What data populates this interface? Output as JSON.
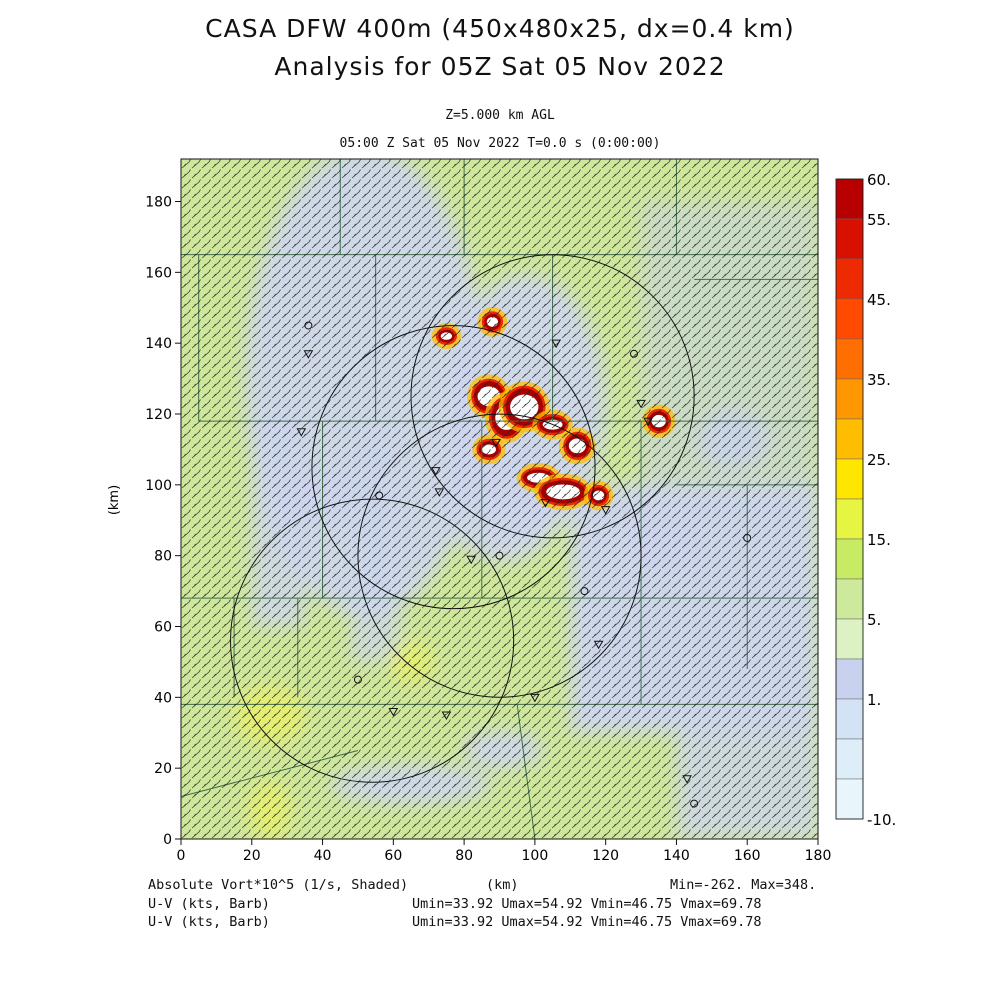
{
  "header": {
    "title_line1": "CASA DFW 400m (450x480x25, dx=0.4 km)",
    "title_line2": "Analysis for 05Z Sat 05 Nov 2022",
    "level": "Z=5.000 km AGL",
    "time": "05:00 Z Sat 05 Nov 2022    T=0.0 s (0:00:00)"
  },
  "footer": {
    "field_label": "Absolute Vort*10^5 (1/s, Shaded)",
    "xunit": "(km)",
    "minmax": "Min=-262. Max=348.",
    "barb1_label": "U-V (kts, Barb)",
    "barb1_stats": "Umin=33.92 Umax=54.92 Vmin=46.75 Vmax=69.78",
    "barb2_label": "U-V (kts, Barb)",
    "barb2_stats": "Umin=33.92 Umax=54.92 Vmin=46.75 Vmax=69.78"
  },
  "colors": {
    "background_field": "#cfe79b",
    "low_field": "#cdd6ee",
    "barb": "#222222",
    "county_lines": "#3d6b4a",
    "range_rings": "#111111"
  },
  "chart_data": {
    "type": "heatmap",
    "xlabel": "",
    "ylabel": "(km)",
    "xlim": [
      0,
      180
    ],
    "ylim": [
      0,
      192
    ],
    "xticks": [
      0,
      20,
      40,
      60,
      80,
      100,
      120,
      140,
      160,
      180
    ],
    "yticks": [
      0,
      20,
      40,
      60,
      80,
      100,
      120,
      140,
      160,
      180
    ],
    "colorbar": {
      "labels": [
        "60.",
        "55.",
        "45.",
        "35.",
        "25.",
        "15.",
        "5.",
        "1.",
        "-10."
      ],
      "bins": [
        {
          "color": "#b80000"
        },
        {
          "color": "#d71000"
        },
        {
          "color": "#ee2a00"
        },
        {
          "color": "#ff4a00"
        },
        {
          "color": "#ff6e00"
        },
        {
          "color": "#ff9700"
        },
        {
          "color": "#ffbd00"
        },
        {
          "color": "#ffe600"
        },
        {
          "color": "#e6f541"
        },
        {
          "color": "#c7ec64"
        },
        {
          "color": "#cdea9c"
        },
        {
          "color": "#dcf2c2"
        },
        {
          "color": "#c8d2ee"
        },
        {
          "color": "#d3e3f5"
        },
        {
          "color": "#deeef9"
        },
        {
          "color": "#e8f5fb"
        }
      ]
    },
    "wind_barb_direction": "southwest",
    "range_rings": [
      {
        "center": [
          105,
          125
        ],
        "radius_km": 40
      },
      {
        "center": [
          77,
          105
        ],
        "radius_km": 40
      },
      {
        "center": [
          90,
          80
        ],
        "radius_km": 40
      },
      {
        "center": [
          54,
          56
        ],
        "radius_km": 40
      }
    ],
    "vorticity_maximum_region": {
      "x_range_km": [
        85,
        120
      ],
      "y_range_km": [
        95,
        135
      ],
      "max": 348
    }
  }
}
